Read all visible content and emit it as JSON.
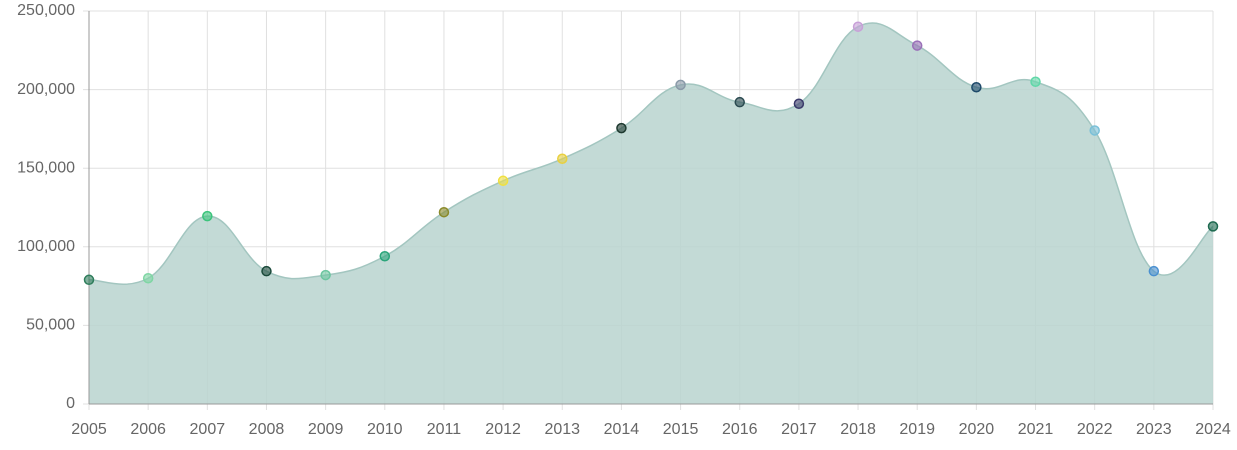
{
  "chart_data": {
    "type": "area",
    "categories": [
      "2005",
      "2006",
      "2007",
      "2008",
      "2009",
      "2010",
      "2011",
      "2012",
      "2013",
      "2014",
      "2015",
      "2016",
      "2017",
      "2018",
      "2019",
      "2020",
      "2021",
      "2022",
      "2023",
      "2024"
    ],
    "values": [
      79000,
      80000,
      119500,
      84500,
      82000,
      94000,
      122000,
      142000,
      156000,
      175500,
      203000,
      192000,
      191000,
      240000,
      228000,
      201500,
      205000,
      174000,
      84500,
      113000
    ],
    "color": "#b9d3cf",
    "line_color": "#a3c6c0",
    "point_colors": [
      "#2e7d5b",
      "#7fd6a4",
      "#3cc47c",
      "#1a4a3a",
      "#6cc6a0",
      "#2aa57a",
      "#8a8a2a",
      "#f0e040",
      "#e8d040",
      "#1e3a30",
      "#8a9aa8",
      "#2a4a50",
      "#3a3a6a",
      "#c8a0d8",
      "#9a70b8",
      "#1e4a6a",
      "#60d8a8",
      "#7ac0d8",
      "#4a90d0",
      "#1e6a50"
    ],
    "ylim": [
      0,
      250000
    ],
    "yticks": [
      0,
      {
        "value": 50000,
        "label": "50,000"
      },
      {
        "value": 100000,
        "label": "100,000"
      },
      {
        "value": 150000,
        "label": "150,000"
      },
      {
        "value": 200000,
        "label": "200,000"
      },
      {
        "value": 250000,
        "label": "250,000"
      }
    ],
    "grid": true
  }
}
